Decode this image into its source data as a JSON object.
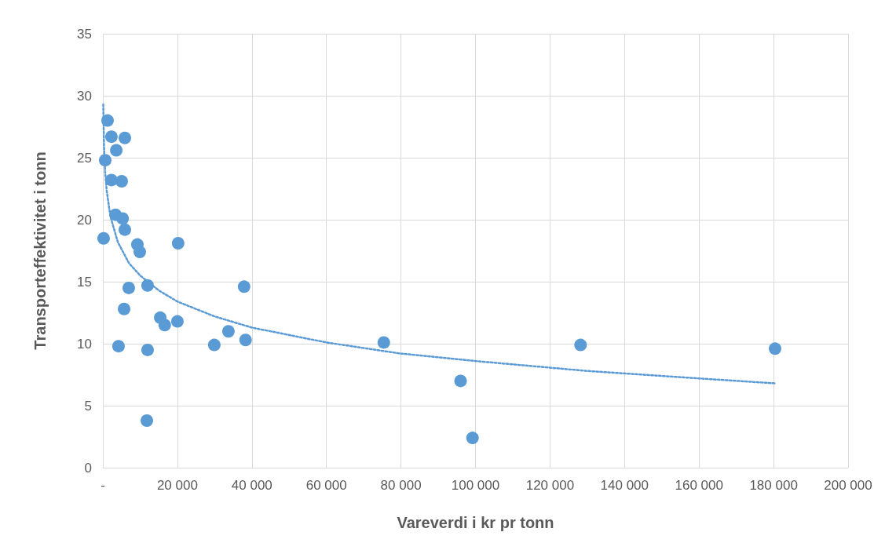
{
  "chart_data": {
    "type": "scatter",
    "xlabel": "Vareverdi i kr pr tonn",
    "ylabel": "Transporteffektivitet i tonn",
    "xlim": [
      0,
      200000
    ],
    "xticks": [
      {
        "value": 0,
        "label": "-"
      },
      {
        "value": 20000,
        "label": "20 000"
      },
      {
        "value": 40000,
        "label": "40 000"
      },
      {
        "value": 60000,
        "label": "60 000"
      },
      {
        "value": 80000,
        "label": "80 000"
      },
      {
        "value": 100000,
        "label": "100 000"
      },
      {
        "value": 120000,
        "label": "120 000"
      },
      {
        "value": 140000,
        "label": "140 000"
      },
      {
        "value": 160000,
        "label": "160 000"
      },
      {
        "value": 180000,
        "label": "180 000"
      },
      {
        "value": 200000,
        "label": "200 000"
      }
    ],
    "ylim": [
      0,
      35
    ],
    "yticks": [
      0,
      5,
      10,
      15,
      20,
      25,
      30,
      35
    ],
    "grid": true,
    "marker": "circle",
    "series": [
      {
        "color": "#5b9bd5",
        "x": [
          1260,
          2300,
          5900,
          3600,
          630,
          2300,
          5050,
          3400,
          5300,
          5900,
          200,
          9260,
          9900,
          20200,
          6950,
          12000,
          37900,
          5700,
          15400,
          16600,
          20000,
          33700,
          38300,
          29900,
          4200,
          12000,
          11800,
          75400,
          96000,
          99200,
          128200,
          180400
        ],
        "values": [
          28.0,
          26.7,
          26.6,
          25.6,
          24.8,
          23.2,
          23.1,
          20.4,
          20.1,
          19.2,
          18.5,
          18.0,
          17.4,
          18.1,
          14.5,
          14.7,
          14.6,
          12.8,
          12.1,
          11.5,
          11.8,
          11.0,
          10.3,
          9.9,
          9.8,
          9.5,
          3.8,
          10.1,
          7.0,
          2.4,
          9.9,
          9.6
        ]
      },
      {
        "type": "line",
        "color": "#5b9bd5",
        "line_style": "dotted",
        "marker": "none",
        "x": [
          100,
          300,
          600,
          1000,
          2000,
          4000,
          7000,
          10000,
          15000,
          20000,
          30000,
          40000,
          60000,
          80000,
          100000,
          130000,
          160000,
          180400
        ],
        "values": [
          29.3,
          26.0,
          23.9,
          22.4,
          20.3,
          18.2,
          16.5,
          15.5,
          14.3,
          13.4,
          12.2,
          11.3,
          10.1,
          9.2,
          8.6,
          7.8,
          7.2,
          6.8
        ]
      }
    ]
  }
}
